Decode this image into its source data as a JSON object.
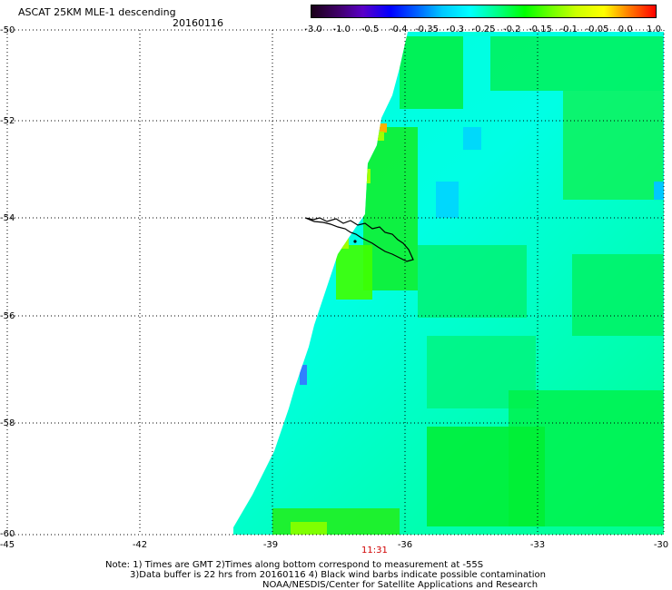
{
  "header": {
    "title": "ASCAT 25KM MLE-1 descending",
    "date": "20160116"
  },
  "colorbar": {
    "labels": [
      "-3.0",
      "-1.0",
      "-0.5",
      "-0.4",
      "-0.35",
      "-0.3",
      "-0.25",
      "-0.2",
      "-0.15",
      "-0.1",
      "-0.05",
      "0.0",
      "1.0"
    ],
    "colors": [
      "#1a0018",
      "#40006a",
      "#5a00c8",
      "#0000ff",
      "#0066ff",
      "#00c8ff",
      "#00ffff",
      "#00ff88",
      "#00ff00",
      "#66ff00",
      "#ccff00",
      "#ffff00",
      "#ff8000",
      "#ff0000"
    ]
  },
  "map": {
    "lat_labels": [
      "-50",
      "-52",
      "-54",
      "-56",
      "-58",
      "-60"
    ],
    "lon_labels": [
      "-45",
      "-42",
      "-39",
      "-36",
      "-33",
      "-30"
    ],
    "swath_colors": {
      "main": "#00ffdc",
      "green": "#00f028",
      "bright": "#80ff00",
      "blue": "#3080ff",
      "orange": "#ffb000"
    }
  },
  "time_label": "11:31",
  "notes": {
    "line1": "Note: 1) Times are GMT 2)Times along bottom correspond to measurement at -55S",
    "line2": "3)Data buffer is 22 hrs from 20160116 4) Black wind barbs indicate possible contamination",
    "line3": "NOAA/NESDIS/Center for Satellite Applications and Research"
  }
}
